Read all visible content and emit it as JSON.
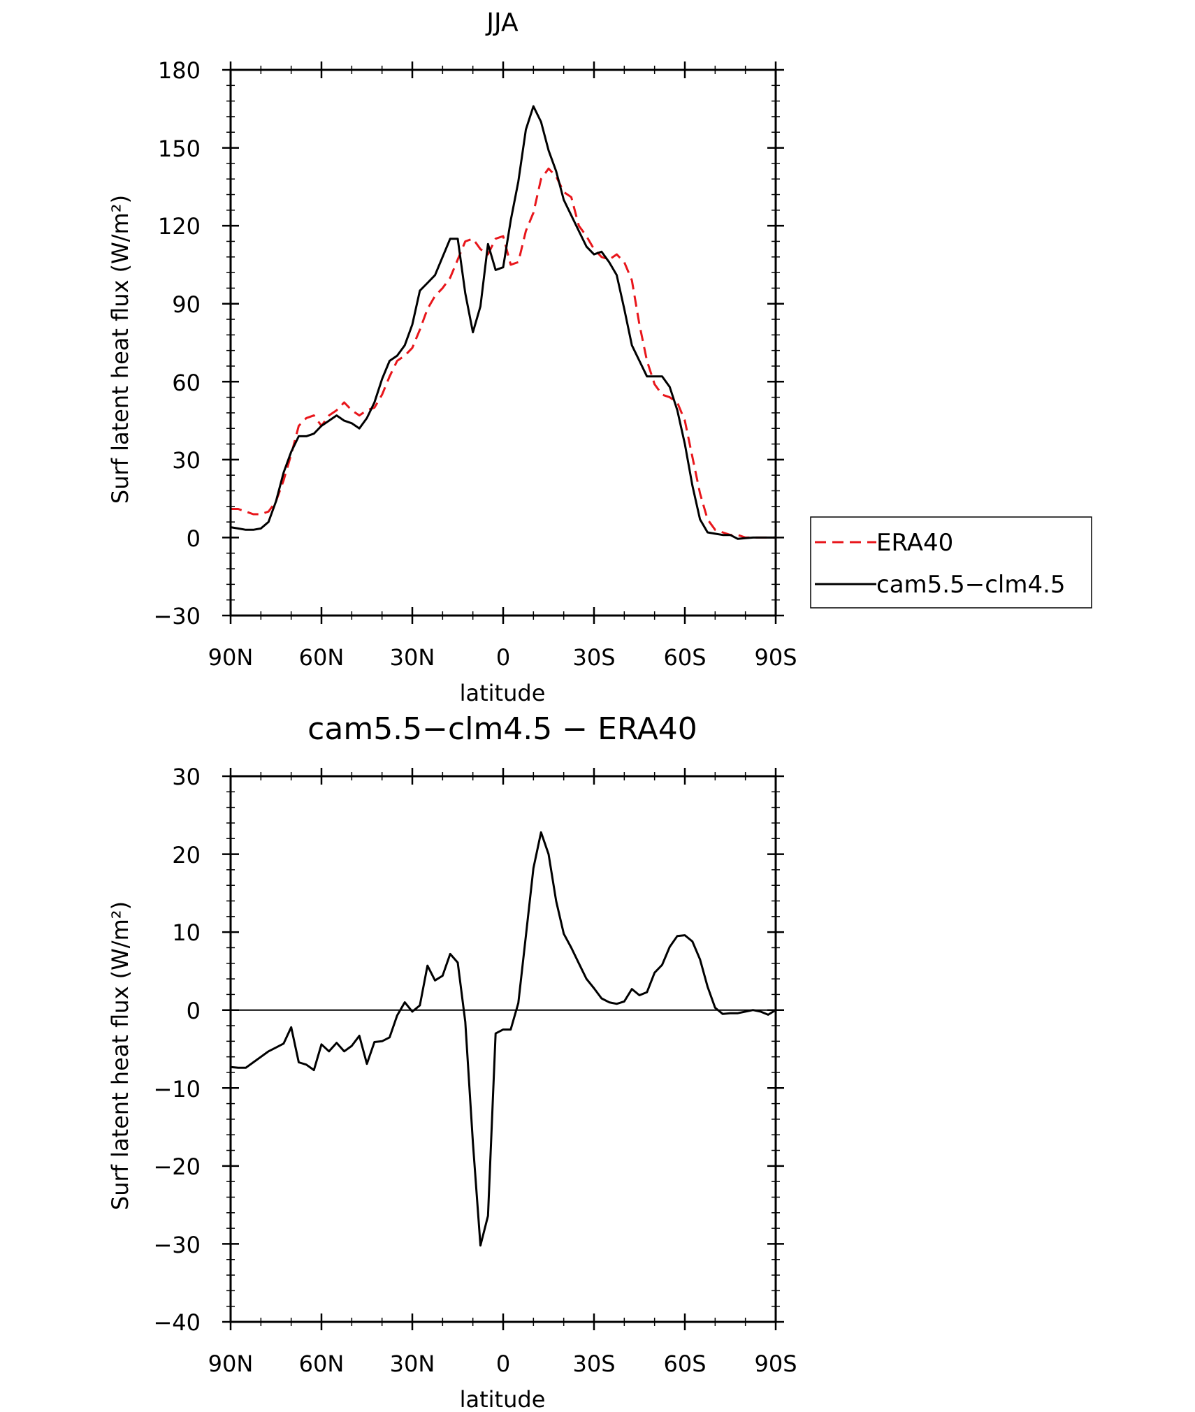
{
  "chart_data": [
    {
      "type": "line",
      "title": "JJA",
      "xlabel": "latitude",
      "ylabel": "Surf latent heat flux (W/m²)",
      "xlim": [
        -90,
        90
      ],
      "ylim": [
        -30,
        180
      ],
      "x_ticks": [
        -90,
        -60,
        -30,
        0,
        30,
        60,
        90
      ],
      "x_tick_labels": [
        "90N",
        "60N",
        "30N",
        "0",
        "30S",
        "60S",
        "90S"
      ],
      "y_ticks": [
        -30,
        0,
        30,
        60,
        90,
        120,
        150,
        180
      ],
      "y_tick_labels": [
        "−30",
        "0",
        "30",
        "60",
        "90",
        "120",
        "150",
        "180"
      ],
      "grid": false,
      "legend": {
        "placement": "right, outside plot",
        "entries": [
          "ERA40",
          "cam5.5−clm4.5"
        ]
      },
      "series": [
        {
          "name": "ERA40",
          "color": "#e8161b",
          "dash": "dashed",
          "x": [
            -90,
            -87.5,
            -85,
            -82.5,
            -80,
            -77.5,
            -75,
            -72.5,
            -70,
            -67.5,
            -65,
            -62.5,
            -60,
            -57.5,
            -55,
            -52.5,
            -50,
            -47.5,
            -45,
            -42.5,
            -40,
            -37.5,
            -35,
            -32.5,
            -30,
            -27.5,
            -25,
            -22.5,
            -20,
            -17.5,
            -15,
            -12.5,
            -10,
            -7.5,
            -5,
            -2.5,
            0,
            2.5,
            5,
            7.5,
            10,
            12.5,
            15,
            17.5,
            20,
            22.5,
            25,
            27.5,
            30,
            32.5,
            35,
            37.5,
            40,
            42.5,
            45,
            47.5,
            50,
            52.5,
            55,
            57.5,
            60,
            62.5,
            65,
            67.5,
            70,
            72.5,
            75,
            77.5,
            80,
            82.5,
            85,
            87.5,
            90
          ],
          "y": [
            11,
            11,
            10,
            9,
            9,
            10,
            14,
            22,
            32,
            43,
            46,
            47,
            43,
            47,
            49,
            52,
            49,
            47,
            49,
            50,
            55,
            62,
            68,
            70,
            73,
            80,
            88,
            93,
            96,
            100,
            107,
            114,
            115,
            111,
            109,
            115,
            116,
            105,
            106,
            118,
            125,
            138,
            142,
            139,
            133,
            131,
            120,
            116,
            111,
            108,
            107,
            109,
            106,
            99,
            82,
            68,
            59,
            55,
            54,
            52,
            45,
            31,
            17,
            7,
            3,
            2,
            1,
            1,
            0,
            0,
            0,
            0,
            0
          ]
        },
        {
          "name": "cam5.5−clm4.5",
          "color": "#000000",
          "dash": "solid",
          "x": [
            -90,
            -87.5,
            -85,
            -82.5,
            -80,
            -77.5,
            -75,
            -72.5,
            -70,
            -67.5,
            -65,
            -62.5,
            -60,
            -57.5,
            -55,
            -52.5,
            -50,
            -47.5,
            -45,
            -42.5,
            -40,
            -37.5,
            -35,
            -32.5,
            -30,
            -27.5,
            -25,
            -22.5,
            -20,
            -17.5,
            -15,
            -12.5,
            -10,
            -7.5,
            -5,
            -2.5,
            0,
            2.5,
            5,
            7.5,
            10,
            12.5,
            15,
            17.5,
            20,
            22.5,
            25,
            27.5,
            30,
            32.5,
            35,
            37.5,
            40,
            42.5,
            45,
            47.5,
            50,
            52.5,
            55,
            57.5,
            60,
            62.5,
            65,
            67.5,
            70,
            72.5,
            75,
            77.5,
            80,
            82.5,
            85,
            87.5,
            90
          ],
          "y": [
            4,
            3.5,
            3,
            3,
            3.5,
            6,
            14,
            25,
            33,
            39,
            39,
            40,
            43,
            45,
            47,
            45,
            44,
            42,
            46,
            52,
            61,
            68,
            70,
            74,
            82,
            95,
            98,
            101,
            108,
            115,
            115,
            94,
            79,
            89,
            113,
            103,
            104,
            122,
            137,
            157,
            166,
            160,
            149,
            141,
            130,
            124,
            118,
            112,
            109,
            110,
            106,
            101,
            88,
            74,
            68,
            62,
            62,
            62,
            58,
            49,
            36,
            20,
            7,
            2,
            1.5,
            1,
            1,
            -0.5,
            -0.2,
            0,
            0,
            0,
            0
          ]
        }
      ]
    },
    {
      "type": "line",
      "title": "cam5.5−clm4.5 − ERA40",
      "xlabel": "latitude",
      "ylabel": "Surf latent heat flux (W/m²)",
      "xlim": [
        -90,
        90
      ],
      "ylim": [
        -40,
        30
      ],
      "x_ticks": [
        -90,
        -60,
        -30,
        0,
        30,
        60,
        90
      ],
      "x_tick_labels": [
        "90N",
        "60N",
        "30N",
        "0",
        "30S",
        "60S",
        "90S"
      ],
      "y_ticks": [
        -40,
        -30,
        -20,
        -10,
        0,
        10,
        20,
        30
      ],
      "y_tick_labels": [
        "−40",
        "−30",
        "−20",
        "−10",
        "0",
        "10",
        "20",
        "30"
      ],
      "grid": false,
      "series": [
        {
          "color": "#000000",
          "dash": "solid",
          "x": [
            -90,
            -87.5,
            -85,
            -82.5,
            -80,
            -77.5,
            -75,
            -72.5,
            -70,
            -67.5,
            -65,
            -62.5,
            -60,
            -57.5,
            -55,
            -52.5,
            -50,
            -47.5,
            -45,
            -42.5,
            -40,
            -37.5,
            -35,
            -32.5,
            -30,
            -27.5,
            -25,
            -22.5,
            -20,
            -17.5,
            -15,
            -12.5,
            -10,
            -7.5,
            -5,
            -2.5,
            0,
            2.5,
            5,
            7.5,
            10,
            12.5,
            15,
            17.5,
            20,
            22.5,
            25,
            27.5,
            30,
            32.5,
            35,
            37.5,
            40,
            42.5,
            45,
            47.5,
            50,
            52.5,
            55,
            57.5,
            60,
            62.5,
            65,
            67.5,
            70,
            72.5,
            75,
            77.5,
            80,
            82.5,
            85,
            87.5,
            90
          ],
          "y": [
            -7.3,
            -7.4,
            -7.4,
            -6.7,
            -6,
            -5.3,
            -4.8,
            -4.3,
            -2.2,
            -6.7,
            -7,
            -7.7,
            -4.4,
            -5.3,
            -4.2,
            -5.3,
            -4.6,
            -3.3,
            -6.9,
            -4.1,
            -4,
            -3.5,
            -0.7,
            1,
            -0.2,
            0.6,
            5.7,
            3.8,
            4.4,
            7.2,
            6.1,
            -1.5,
            -17,
            -30.2,
            -26.4,
            -3,
            -2.5,
            -2.5,
            0.9,
            9.5,
            18.2,
            22.8,
            20,
            14,
            9.8,
            8,
            6,
            4,
            2.8,
            1.5,
            1,
            0.8,
            1.1,
            2.7,
            1.9,
            2.3,
            4.8,
            5.8,
            8.1,
            9.5,
            9.6,
            8.8,
            6.5,
            3,
            0.3,
            -0.5,
            -0.4,
            -0.4,
            -0.2,
            0,
            -0.2,
            -0.6,
            0
          ]
        }
      ]
    }
  ]
}
